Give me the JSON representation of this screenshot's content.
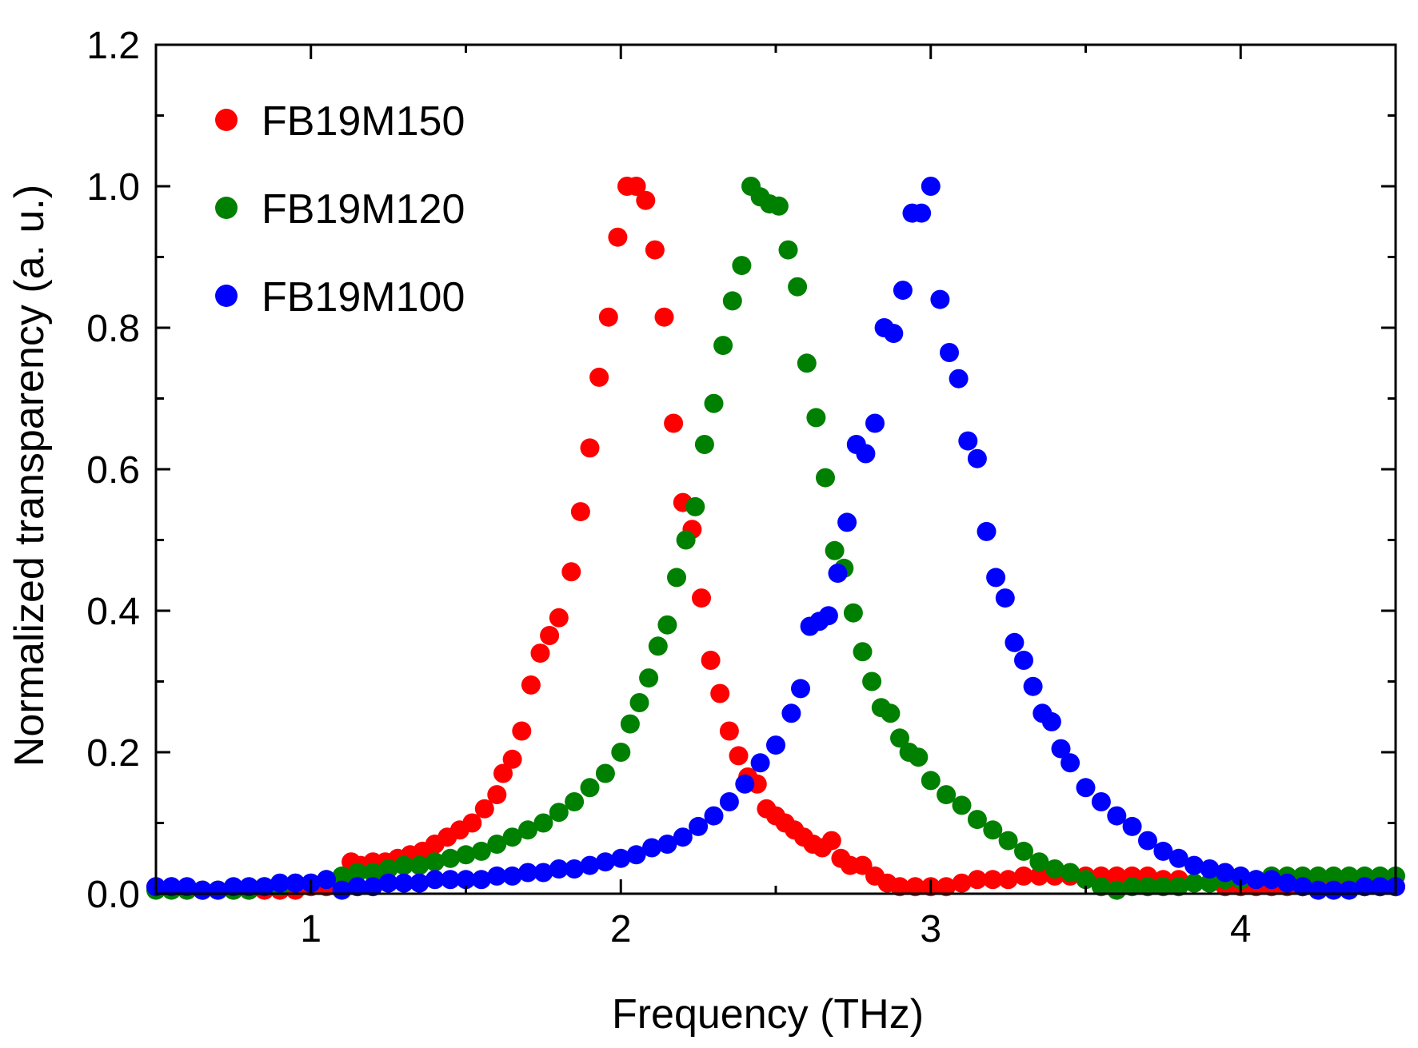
{
  "chart_data": {
    "type": "scatter",
    "title": "",
    "xlabel": "Frequency (THz)",
    "ylabel": "Normalized transparency (a. u.)",
    "xlim": [
      0.5,
      4.5
    ],
    "ylim": [
      0.0,
      1.2
    ],
    "xticks": [
      1,
      2,
      3,
      4
    ],
    "xtick_labels": [
      "1",
      "2",
      "3",
      "4"
    ],
    "yticks": [
      0.0,
      0.2,
      0.4,
      0.6,
      0.8,
      1.0,
      1.2
    ],
    "ytick_labels": [
      "0.0",
      "0.2",
      "0.4",
      "0.6",
      "0.8",
      "1.0",
      "1.2"
    ],
    "legend_position": "top-left",
    "grid": false,
    "series": [
      {
        "name": "FB19M150",
        "color": "#ff0000",
        "x": [
          0.5,
          0.55,
          0.6,
          0.65,
          0.7,
          0.75,
          0.8,
          0.85,
          0.9,
          0.95,
          1.0,
          1.05,
          1.1,
          1.13,
          1.16,
          1.2,
          1.24,
          1.28,
          1.32,
          1.36,
          1.4,
          1.44,
          1.48,
          1.52,
          1.56,
          1.6,
          1.62,
          1.65,
          1.68,
          1.71,
          1.74,
          1.77,
          1.8,
          1.84,
          1.87,
          1.9,
          1.93,
          1.96,
          1.99,
          2.02,
          2.05,
          2.08,
          2.11,
          2.14,
          2.17,
          2.2,
          2.23,
          2.26,
          2.29,
          2.32,
          2.35,
          2.38,
          2.41,
          2.44,
          2.47,
          2.5,
          2.53,
          2.56,
          2.59,
          2.62,
          2.65,
          2.68,
          2.71,
          2.74,
          2.78,
          2.82,
          2.86,
          2.9,
          2.95,
          3.0,
          3.05,
          3.1,
          3.15,
          3.2,
          3.25,
          3.3,
          3.35,
          3.4,
          3.45,
          3.5,
          3.55,
          3.6,
          3.65,
          3.7,
          3.75,
          3.8,
          3.85,
          3.9,
          3.95,
          4.0,
          4.05,
          4.1,
          4.15,
          4.2,
          4.25,
          4.3,
          4.35,
          4.4,
          4.45,
          4.5
        ],
        "y": [
          0.01,
          0.01,
          0.005,
          0.005,
          0.005,
          0.005,
          0.005,
          0.005,
          0.005,
          0.005,
          0.01,
          0.01,
          0.02,
          0.045,
          0.04,
          0.045,
          0.045,
          0.05,
          0.055,
          0.06,
          0.07,
          0.08,
          0.09,
          0.1,
          0.12,
          0.14,
          0.17,
          0.19,
          0.23,
          0.295,
          0.34,
          0.365,
          0.39,
          0.455,
          0.54,
          0.63,
          0.73,
          0.815,
          0.928,
          1.0,
          1.0,
          0.98,
          0.91,
          0.815,
          0.665,
          0.553,
          0.515,
          0.418,
          0.33,
          0.283,
          0.23,
          0.195,
          0.165,
          0.155,
          0.12,
          0.11,
          0.1,
          0.09,
          0.08,
          0.07,
          0.065,
          0.075,
          0.05,
          0.04,
          0.04,
          0.025,
          0.015,
          0.01,
          0.01,
          0.01,
          0.01,
          0.015,
          0.02,
          0.02,
          0.02,
          0.025,
          0.025,
          0.025,
          0.025,
          0.025,
          0.025,
          0.025,
          0.025,
          0.025,
          0.02,
          0.02,
          0.015,
          0.015,
          0.01,
          0.01,
          0.01,
          0.01,
          0.01,
          0.01,
          0.01,
          0.01,
          0.015,
          0.01,
          0.01,
          0.01
        ]
      },
      {
        "name": "FB19M120",
        "color": "#008000",
        "x": [
          0.5,
          0.55,
          0.6,
          0.65,
          0.7,
          0.75,
          0.8,
          0.85,
          0.9,
          0.95,
          1.0,
          1.05,
          1.1,
          1.15,
          1.2,
          1.25,
          1.3,
          1.35,
          1.4,
          1.45,
          1.5,
          1.55,
          1.6,
          1.65,
          1.7,
          1.75,
          1.8,
          1.85,
          1.9,
          1.95,
          2.0,
          2.03,
          2.06,
          2.09,
          2.12,
          2.15,
          2.18,
          2.21,
          2.24,
          2.27,
          2.3,
          2.33,
          2.36,
          2.39,
          2.42,
          2.45,
          2.48,
          2.51,
          2.54,
          2.57,
          2.6,
          2.63,
          2.66,
          2.69,
          2.72,
          2.75,
          2.78,
          2.81,
          2.84,
          2.87,
          2.9,
          2.93,
          2.96,
          3.0,
          3.05,
          3.1,
          3.15,
          3.2,
          3.25,
          3.3,
          3.35,
          3.4,
          3.45,
          3.5,
          3.55,
          3.6,
          3.65,
          3.7,
          3.75,
          3.8,
          3.85,
          3.9,
          3.95,
          4.0,
          4.05,
          4.1,
          4.15,
          4.2,
          4.25,
          4.3,
          4.35,
          4.4,
          4.45,
          4.5
        ],
        "y": [
          0.005,
          0.005,
          0.005,
          0.005,
          0.005,
          0.005,
          0.005,
          0.01,
          0.01,
          0.015,
          0.015,
          0.02,
          0.025,
          0.03,
          0.03,
          0.035,
          0.04,
          0.04,
          0.045,
          0.05,
          0.055,
          0.06,
          0.07,
          0.08,
          0.09,
          0.1,
          0.115,
          0.13,
          0.15,
          0.17,
          0.2,
          0.24,
          0.27,
          0.305,
          0.35,
          0.38,
          0.447,
          0.5,
          0.547,
          0.635,
          0.693,
          0.775,
          0.838,
          0.888,
          1.0,
          0.985,
          0.975,
          0.972,
          0.91,
          0.858,
          0.75,
          0.673,
          0.588,
          0.485,
          0.46,
          0.397,
          0.342,
          0.3,
          0.263,
          0.255,
          0.22,
          0.2,
          0.193,
          0.16,
          0.14,
          0.125,
          0.105,
          0.09,
          0.075,
          0.06,
          0.045,
          0.035,
          0.03,
          0.02,
          0.01,
          0.005,
          0.01,
          0.01,
          0.01,
          0.01,
          0.015,
          0.015,
          0.02,
          0.02,
          0.02,
          0.025,
          0.025,
          0.025,
          0.025,
          0.025,
          0.025,
          0.025,
          0.025,
          0.025
        ]
      },
      {
        "name": "FB19M100",
        "color": "#0000ff",
        "x": [
          0.5,
          0.55,
          0.6,
          0.65,
          0.7,
          0.75,
          0.8,
          0.85,
          0.9,
          0.95,
          1.0,
          1.05,
          1.1,
          1.15,
          1.2,
          1.25,
          1.3,
          1.35,
          1.4,
          1.45,
          1.5,
          1.55,
          1.6,
          1.65,
          1.7,
          1.75,
          1.8,
          1.85,
          1.9,
          1.95,
          2.0,
          2.05,
          2.1,
          2.15,
          2.2,
          2.25,
          2.3,
          2.35,
          2.4,
          2.45,
          2.5,
          2.55,
          2.58,
          2.61,
          2.64,
          2.67,
          2.7,
          2.73,
          2.76,
          2.79,
          2.82,
          2.85,
          2.88,
          2.91,
          2.94,
          2.97,
          3.0,
          3.03,
          3.06,
          3.09,
          3.12,
          3.15,
          3.18,
          3.21,
          3.24,
          3.27,
          3.3,
          3.33,
          3.36,
          3.39,
          3.42,
          3.45,
          3.5,
          3.55,
          3.6,
          3.65,
          3.7,
          3.75,
          3.8,
          3.85,
          3.9,
          3.95,
          4.0,
          4.05,
          4.1,
          4.15,
          4.2,
          4.25,
          4.3,
          4.35,
          4.4,
          4.45,
          4.5
        ],
        "y": [
          0.01,
          0.01,
          0.01,
          0.005,
          0.005,
          0.01,
          0.01,
          0.01,
          0.015,
          0.015,
          0.015,
          0.02,
          0.005,
          0.01,
          0.01,
          0.015,
          0.015,
          0.015,
          0.02,
          0.02,
          0.02,
          0.02,
          0.025,
          0.025,
          0.03,
          0.03,
          0.035,
          0.035,
          0.04,
          0.045,
          0.05,
          0.055,
          0.065,
          0.07,
          0.08,
          0.095,
          0.11,
          0.13,
          0.155,
          0.185,
          0.21,
          0.255,
          0.29,
          0.378,
          0.385,
          0.393,
          0.453,
          0.525,
          0.635,
          0.622,
          0.665,
          0.8,
          0.792,
          0.853,
          0.962,
          0.962,
          1.0,
          0.84,
          0.765,
          0.728,
          0.64,
          0.615,
          0.512,
          0.447,
          0.418,
          0.355,
          0.33,
          0.293,
          0.255,
          0.243,
          0.205,
          0.185,
          0.15,
          0.13,
          0.11,
          0.095,
          0.075,
          0.06,
          0.05,
          0.04,
          0.035,
          0.03,
          0.025,
          0.02,
          0.02,
          0.015,
          0.01,
          0.005,
          0.005,
          0.005,
          0.01,
          0.01,
          0.01
        ]
      }
    ]
  }
}
